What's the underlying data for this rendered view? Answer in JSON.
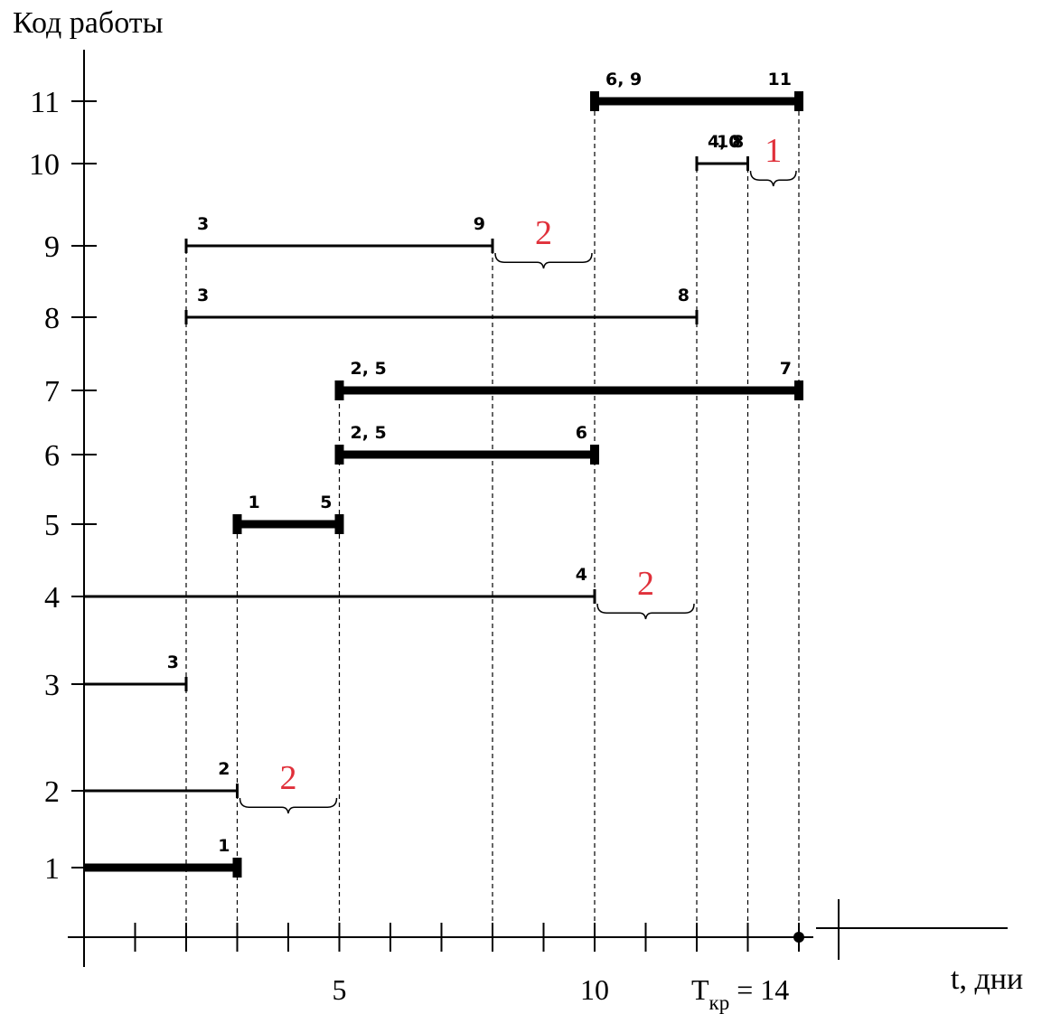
{
  "chart_data": {
    "type": "gantt",
    "ylabel": "Код работы",
    "xlabel": "t, дни",
    "x_tick_labels": [
      {
        "x": 5,
        "label": "5"
      },
      {
        "x": 10,
        "label": "10"
      }
    ],
    "critical_time": {
      "x": 14,
      "label_main": "T",
      "label_sub": "кр",
      "label_value": "= 14"
    },
    "xlim": [
      0,
      14
    ],
    "y_categories": [
      1,
      2,
      3,
      4,
      5,
      6,
      7,
      8,
      9,
      10,
      11
    ],
    "y_tick_labels": [
      "1",
      "2",
      "3",
      "4",
      "5",
      "6",
      "7",
      "8",
      "9",
      "10",
      "11"
    ],
    "tasks": [
      {
        "y": 1,
        "start": 0,
        "end": 3,
        "critical": true,
        "start_label": "",
        "end_label": "1"
      },
      {
        "y": 2,
        "start": 0,
        "end": 3,
        "critical": false,
        "start_label": "",
        "end_label": "2"
      },
      {
        "y": 3,
        "start": 0,
        "end": 2,
        "critical": false,
        "start_label": "",
        "end_label": "3"
      },
      {
        "y": 4,
        "start": 0,
        "end": 10,
        "critical": false,
        "start_label": "",
        "end_label": "4"
      },
      {
        "y": 5,
        "start": 3,
        "end": 5,
        "critical": true,
        "start_label": "1",
        "end_label": "5"
      },
      {
        "y": 6,
        "start": 5,
        "end": 10,
        "critical": true,
        "start_label": "2, 5",
        "end_label": "6"
      },
      {
        "y": 7,
        "start": 5,
        "end": 14,
        "critical": true,
        "start_label": "2, 5",
        "end_label": "7"
      },
      {
        "y": 8,
        "start": 2,
        "end": 12,
        "critical": false,
        "start_label": "3",
        "end_label": "8"
      },
      {
        "y": 9,
        "start": 2,
        "end": 8,
        "critical": false,
        "start_label": "3",
        "end_label": "9"
      },
      {
        "y": 10,
        "start": 12,
        "end": 13,
        "critical": false,
        "start_label": "4, 8",
        "end_label": "10"
      },
      {
        "y": 11,
        "start": 10,
        "end": 14,
        "critical": true,
        "start_label": "6, 9",
        "end_label": "11"
      }
    ],
    "reserves": [
      {
        "y": 2,
        "from": 3,
        "to": 5,
        "label": "2"
      },
      {
        "y": 4,
        "from": 10,
        "to": 12,
        "label": "2"
      },
      {
        "y": 9,
        "from": 8,
        "to": 10,
        "label": "2"
      },
      {
        "y": 10,
        "from": 13,
        "to": 14,
        "label": "1"
      }
    ],
    "dashed_guides": [
      {
        "x": 2,
        "y_top": 9
      },
      {
        "x": 3,
        "y_top": 5
      },
      {
        "x": 5,
        "y_top": 7
      },
      {
        "x": 8,
        "y_top": 9
      },
      {
        "x": 10,
        "y_top": 11
      },
      {
        "x": 12,
        "y_top": 10
      },
      {
        "x": 13,
        "y_top": 10
      },
      {
        "x": 14,
        "y_top": 11
      }
    ],
    "colors": {
      "ink": "#000000",
      "reserve": "#e0303a"
    }
  }
}
